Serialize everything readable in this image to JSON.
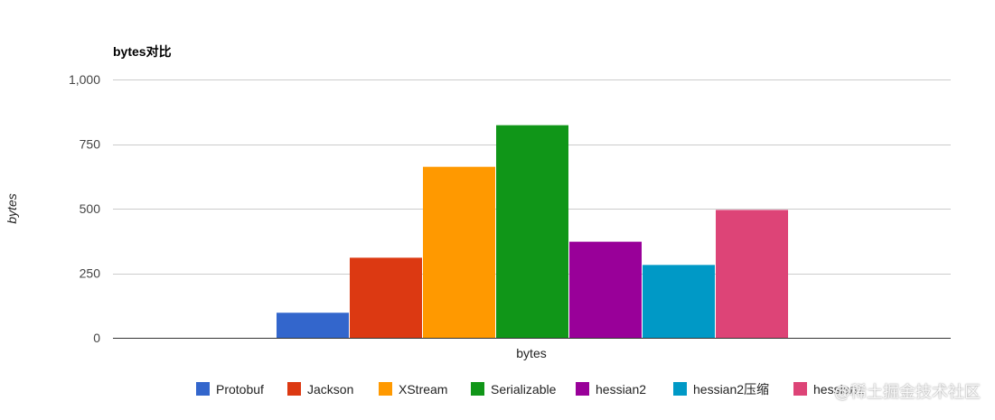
{
  "chart_data": {
    "type": "bar",
    "title": "bytes对比",
    "xlabel": "bytes",
    "ylabel": "bytes",
    "categories": [
      "bytes"
    ],
    "ylim": [
      0,
      1000
    ],
    "yticks": [
      0,
      250,
      500,
      750,
      1000
    ],
    "ytick_labels": [
      "0",
      "250",
      "500",
      "750",
      "1,000"
    ],
    "grid": true,
    "legend_position": "bottom",
    "series": [
      {
        "name": "Protobuf",
        "values": [
          97
        ],
        "color": "#3366cc"
      },
      {
        "name": "Jackson",
        "values": [
          310
        ],
        "color": "#dc3912"
      },
      {
        "name": "XStream",
        "values": [
          662
        ],
        "color": "#ff9900"
      },
      {
        "name": "Serializable",
        "values": [
          823
        ],
        "color": "#109618"
      },
      {
        "name": "hessian2",
        "values": [
          372
        ],
        "color": "#990099"
      },
      {
        "name": "hessian2压缩",
        "values": [
          282
        ],
        "color": "#0099c6"
      },
      {
        "name": "hessian1",
        "values": [
          495
        ],
        "color": "#dd4477"
      }
    ]
  },
  "watermark": "@稀土掘金技术社区"
}
